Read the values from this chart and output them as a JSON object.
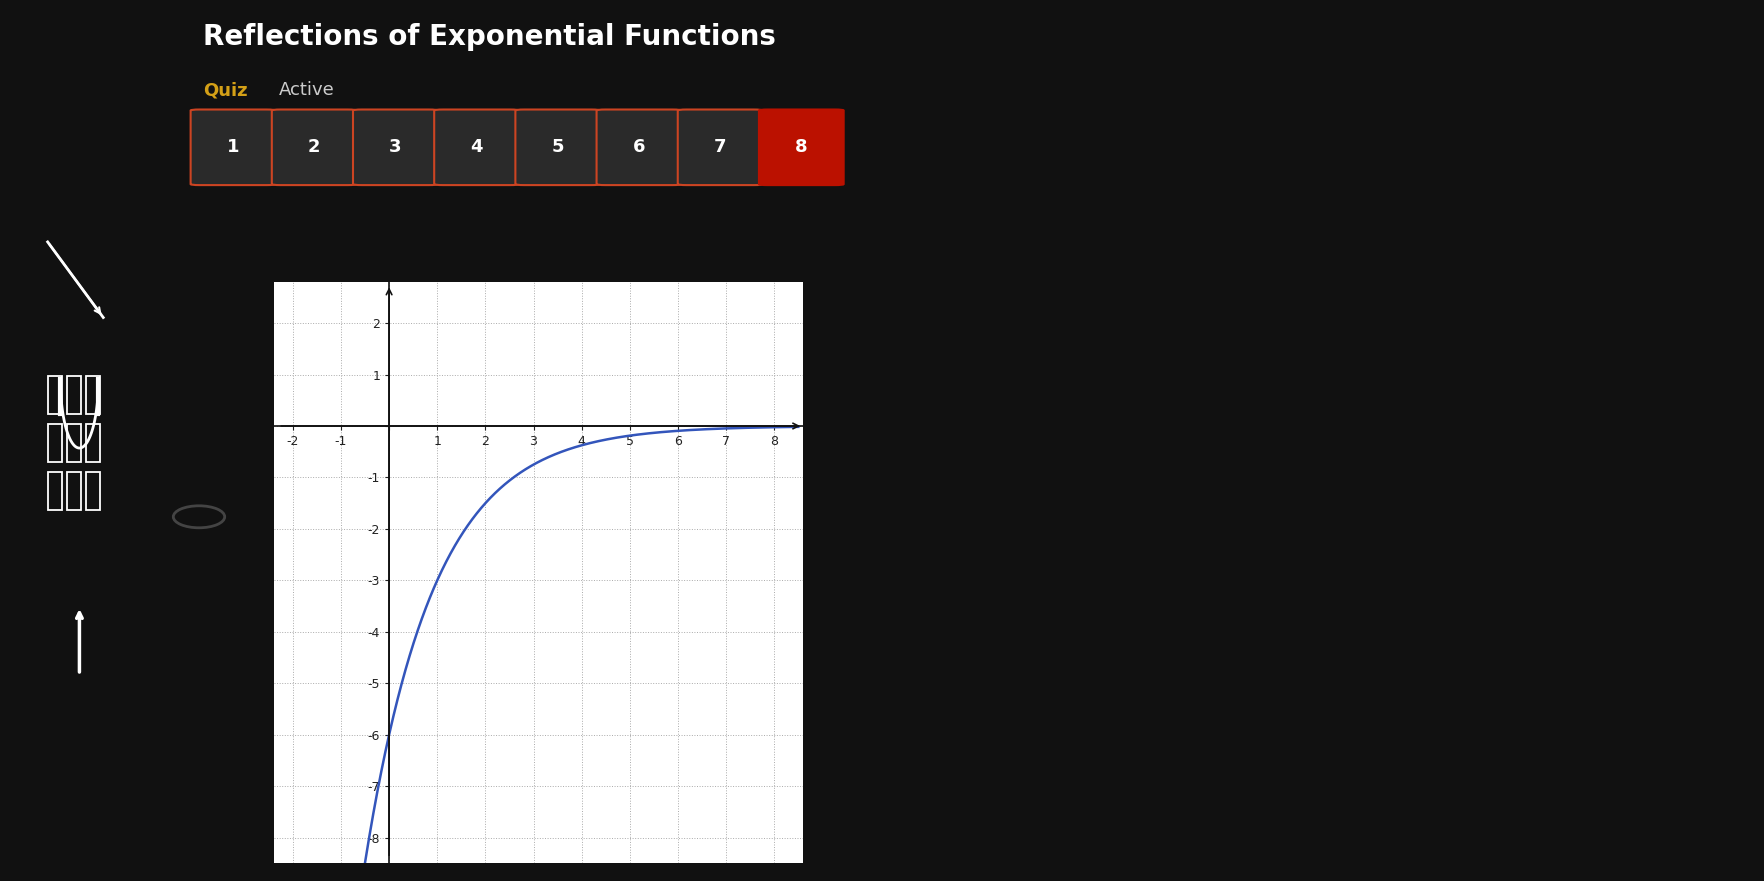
{
  "title": "Reflections of Exponential Functions",
  "quiz_label": "Quiz",
  "active_label": "Active",
  "question_numbers": [
    1,
    2,
    3,
    4,
    5,
    6,
    7,
    8
  ],
  "active_number": 8,
  "background_color": "#111111",
  "panel_color": "#d8d8d8",
  "title_color": "#ffffff",
  "quiz_color": "#d4a017",
  "active_color": "#cccccc",
  "button_color": "#2a2a2a",
  "button_active_color": "#bb1100",
  "button_border_color": "#cc4422",
  "button_text_color": "#ffffff",
  "question_text_color": "#111111",
  "graph_bg": "#ffffff",
  "curve_color": "#3355bb",
  "grid_color": "#aaaaaa",
  "axis_color": "#111111",
  "tick_color": "#222222",
  "x_min": -2,
  "x_max": 8,
  "y_min": -8,
  "y_max": 2,
  "x_ticks": [
    -2,
    -1,
    1,
    2,
    3,
    4,
    5,
    6,
    7,
    8
  ],
  "y_ticks": [
    -8,
    -7,
    -6,
    -5,
    -4,
    -3,
    -2,
    -1,
    1,
    2
  ]
}
